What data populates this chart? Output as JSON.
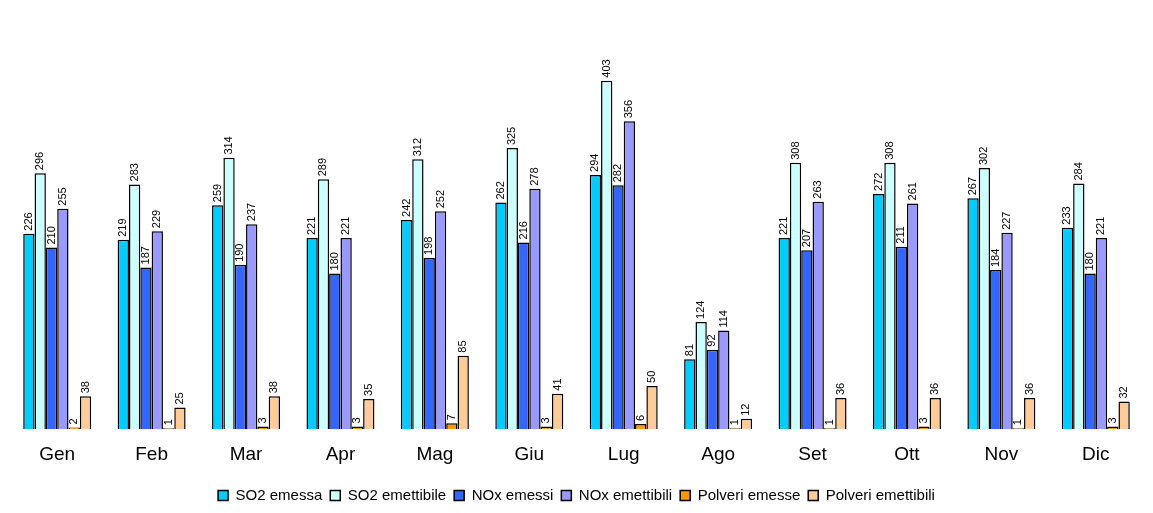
{
  "chart_data": {
    "type": "bar",
    "categories": [
      "Gen",
      "Feb",
      "Mar",
      "Apr",
      "Mag",
      "Giu",
      "Lug",
      "Ago",
      "Set",
      "Ott",
      "Nov",
      "Dic"
    ],
    "series": [
      {
        "name": "SO2 emessa",
        "color": "#00ccff",
        "values": [
          226,
          219,
          259,
          221,
          242,
          262,
          294,
          81,
          221,
          272,
          267,
          233
        ]
      },
      {
        "name": "SO2 emettibile",
        "color": "#ccffff",
        "values": [
          296,
          283,
          314,
          289,
          312,
          325,
          403,
          124,
          308,
          308,
          302,
          284
        ]
      },
      {
        "name": "NOx emessi",
        "color": "#3366ff",
        "values": [
          210,
          187,
          190,
          180,
          198,
          216,
          282,
          92,
          207,
          211,
          184,
          180
        ]
      },
      {
        "name": "NOx emettibili",
        "color": "#9999ff",
        "values": [
          255,
          229,
          237,
          221,
          252,
          278,
          356,
          114,
          263,
          261,
          227,
          221
        ]
      },
      {
        "name": "Polveri emesse",
        "color": "#ff9900",
        "values": [
          2,
          1,
          3,
          3,
          7,
          3,
          6,
          1,
          1,
          3,
          1,
          3
        ]
      },
      {
        "name": "Polveri emettibili",
        "color": "#ffcc99",
        "values": [
          38,
          25,
          38,
          35,
          85,
          41,
          50,
          12,
          36,
          36,
          36,
          32
        ]
      }
    ],
    "data_labels": true,
    "grid": false,
    "legend": "bottom"
  }
}
